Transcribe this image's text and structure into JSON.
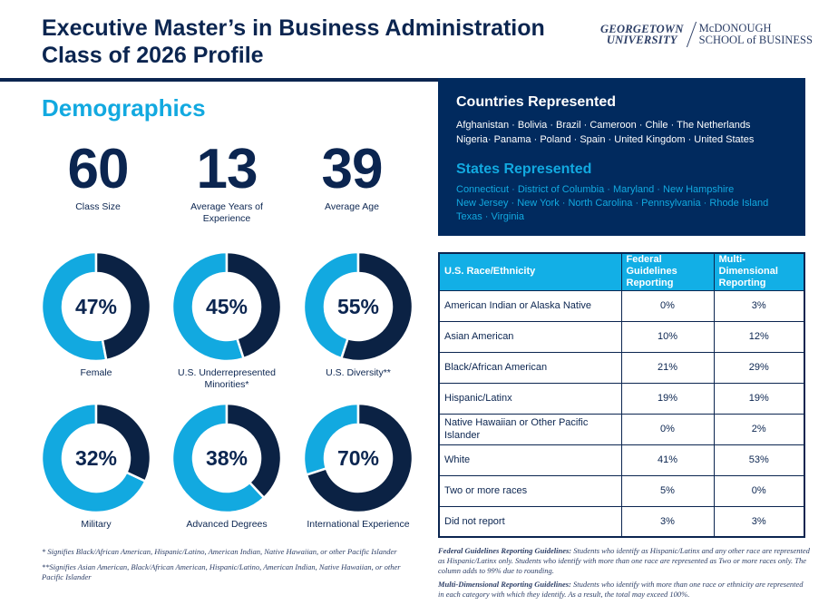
{
  "header": {
    "title_line1": "Executive Master’s in Business Administration",
    "title_line2": "Class of 2026 Profile",
    "logo": {
      "left_line1": "GEORGETOWN",
      "left_line2": "UNIVERSITY",
      "right_line1": "McDONOUGH",
      "right_line2": "SCHOOL of BUSINESS"
    }
  },
  "demographics": {
    "heading": "Demographics",
    "stats": [
      {
        "value": "60",
        "label": "Class Size"
      },
      {
        "value": "13",
        "label": "Average Years of Experience"
      },
      {
        "value": "39",
        "label": "Average Age"
      }
    ],
    "donuts": [
      {
        "percent": 47,
        "text": "47%",
        "label": "Female"
      },
      {
        "percent": 45,
        "text": "45%",
        "label": "U.S. Underrepresented Minorities*"
      },
      {
        "percent": 55,
        "text": "55%",
        "label": "U.S. Diversity**"
      },
      {
        "percent": 32,
        "text": "32%",
        "label": "Military"
      },
      {
        "percent": 38,
        "text": "38%",
        "label": "Advanced Degrees"
      },
      {
        "percent": 70,
        "text": "70%",
        "label": "International Experience"
      }
    ],
    "colors": {
      "dark": "#0b2244",
      "light": "#12a9e0"
    }
  },
  "countries": {
    "heading": "Countries Represented",
    "line1": "Afghanistan · Bolivia · Brazil · Cameroon · Chile · The Netherlands",
    "line2": "Nigeria· Panama · Poland · Spain · United Kingdom · United States"
  },
  "states": {
    "heading": "States Represented",
    "line1": "Connecticut · District of Columbia · Maryland · New Hampshire",
    "line2": "New Jersey · New York · North Carolina · Pennsylvania · Rhode Island",
    "line3": "Texas · Virginia"
  },
  "race_table": {
    "headers": [
      "U.S. Race/Ethnicity",
      "Federal Guidelines Reporting",
      "Multi-Dimensional Reporting"
    ],
    "rows": [
      [
        "American Indian or Alaska Native",
        "0%",
        "3%"
      ],
      [
        "Asian American",
        "10%",
        "12%"
      ],
      [
        "Black/African American",
        "21%",
        "29%"
      ],
      [
        "Hispanic/Latinx",
        "19%",
        "19%"
      ],
      [
        "Native Hawaiian or Other Pacific Islander",
        "0%",
        "2%"
      ],
      [
        "White",
        "41%",
        "53%"
      ],
      [
        "Two or more races",
        "5%",
        "0%"
      ],
      [
        "Did not report",
        "3%",
        "3%"
      ]
    ]
  },
  "footnotes": {
    "single": "* Signifies Black/African American, Hispanic/Latino, American Indian, Native Hawaiian, or other Pacific Islander",
    "double": "**Signifies Asian American, Black/African American, Hispanic/Latino, American Indian, Native Hawaiian, or other Pacific Islander",
    "federal_label": "Federal Guidelines Reporting Guidelines:",
    "federal_text": " Students who identify as Hispanic/Latinx and any other race are represented as Hispanic/Latinx only. Students who identify with more than one race are represented as Two or more races only. The column adds to 99% due to rounding.",
    "multi_label": "Multi-Dimensional Reporting Guidelines:",
    "multi_text": " Students who identify with more than one race or ethnicity are represented in each category with which they identify. As a result, the total may exceed 100%."
  }
}
